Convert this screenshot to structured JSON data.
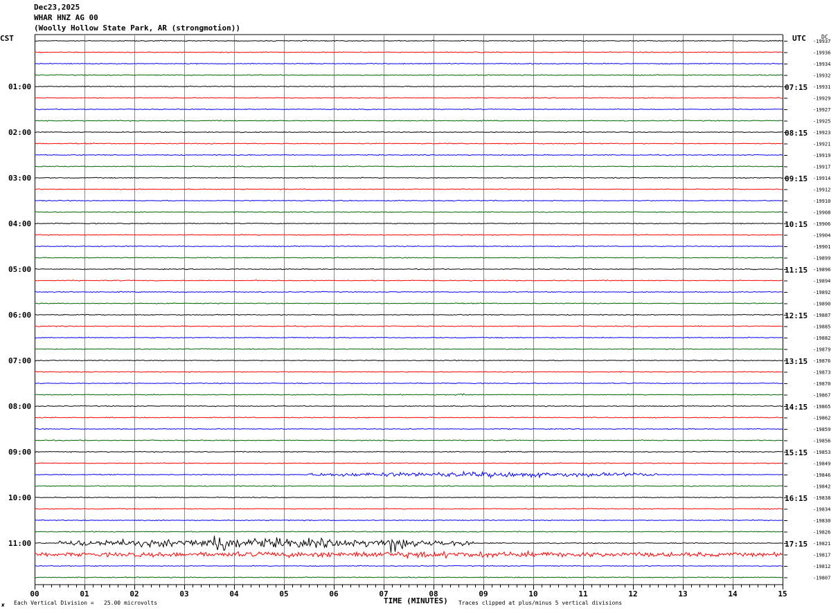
{
  "header": {
    "date": "Dec23,2025",
    "station": "WHAR HNZ AG 00",
    "site": "(Woolly Hollow State Park, AR (strongmotion))"
  },
  "left_zone_label": "CST",
  "right_zone_label": "UTC",
  "dc_label": "DC",
  "footer": {
    "corner_mark": "✘",
    "scale_note": "Each Vertical Division =   25.00 microvolts",
    "x_axis_title": "TIME (MINUTES)",
    "clip_note": "Traces clipped at plus/minus 5 vertical divisions"
  },
  "colors": {
    "trace_cycle": [
      "#000000",
      "#ff0000",
      "#0000ff",
      "#006400"
    ],
    "grid": "#888888"
  },
  "chart_data": {
    "type": "line",
    "title": "",
    "xlabel": "TIME (MINUTES)",
    "ylabel": "",
    "xlim": [
      0,
      15
    ],
    "x_ticks": [
      "00",
      "01",
      "02",
      "03",
      "04",
      "05",
      "06",
      "07",
      "08",
      "09",
      "10",
      "11",
      "12",
      "13",
      "14",
      "15"
    ],
    "row_minutes": 15,
    "left_hour_labels": [
      "01:00",
      "02:00",
      "03:00",
      "04:00",
      "05:00",
      "06:00",
      "07:00",
      "08:00",
      "09:00",
      "10:00",
      "11:00"
    ],
    "right_hour_labels": [
      "07:15",
      "08:15",
      "09:15",
      "10:15",
      "11:15",
      "12:15",
      "13:15",
      "14:15",
      "15:15",
      "16:15",
      "17:15"
    ],
    "dc_offsets": [
      "-19937",
      "-19936",
      "-19934",
      "-19932",
      "-19931",
      "-19929",
      "-19927",
      "-19925",
      "-19923",
      "-19921",
      "-19919",
      "-19917",
      "-19914",
      "-19912",
      "-19910",
      "-19908",
      "-19906",
      "-19904",
      "-19901",
      "-19899",
      "-19896",
      "-19894",
      "-19892",
      "-19890",
      "-19887",
      "-19885",
      "-19882",
      "-19879",
      "-19876",
      "-19873",
      "-19870",
      "-19867",
      "-19865",
      "-19862",
      "-19859",
      "-19856",
      "-19853",
      "-19849",
      "-19846",
      "-19842",
      "-19838",
      "-19834",
      "-19830",
      "-19826",
      "-19821",
      "-19817",
      "-19812",
      "-19807"
    ],
    "events": [
      {
        "row": 31,
        "start_min": 8.4,
        "end_min": 8.7,
        "amplitude": 0.25
      },
      {
        "row": 38,
        "start_min": 5.5,
        "end_min": 12.5,
        "amplitude": 0.5
      },
      {
        "row": 44,
        "start_min": 0.5,
        "end_min": 8.8,
        "amplitude": 1.0
      },
      {
        "row": 45,
        "start_min": 0.0,
        "end_min": 15.0,
        "amplitude": 0.6
      }
    ]
  }
}
